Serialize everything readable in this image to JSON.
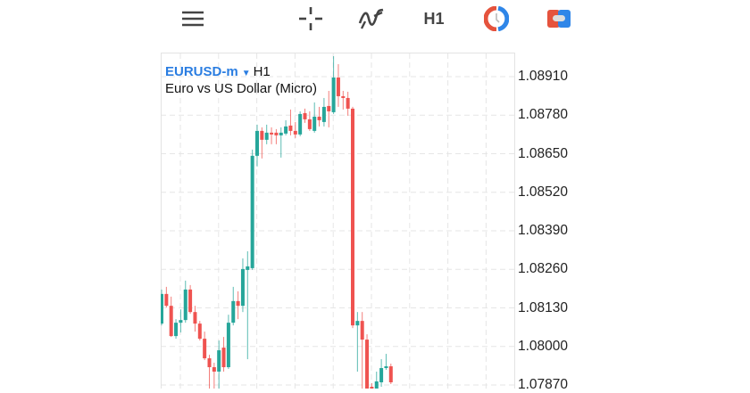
{
  "toolbar": {
    "menu_icon": "hamburger-icon",
    "crosshair_icon": "crosshair-icon",
    "indicators_icon": "indicator-icon",
    "timeframe": "H1",
    "objects_icon": "clock-circle-icon",
    "trade_icon": "trade-toggle-icon"
  },
  "chart_data": {
    "type": "candlestick",
    "symbol": "EURUSD-m",
    "timeframe": "H1",
    "description": "Euro vs US Dollar (Micro)",
    "y_ticks": [
      "1.08910",
      "1.08780",
      "1.08650",
      "1.08520",
      "1.08390",
      "1.08260",
      "1.08130",
      "1.08000",
      "1.07870"
    ],
    "ylim": [
      1.0787,
      1.0891
    ],
    "grid": true,
    "colors": {
      "up": "#26a69a",
      "down": "#ef5350"
    },
    "ohlc": [
      [
        1.08077,
        1.08192,
        1.08071,
        1.08177
      ],
      [
        1.08177,
        1.08201,
        1.08131,
        1.08137
      ],
      [
        1.08137,
        1.08168,
        1.08032,
        1.08035
      ],
      [
        1.08035,
        1.08092,
        1.08026,
        1.0808
      ],
      [
        1.0808,
        1.08125,
        1.08047,
        1.08089
      ],
      [
        1.08089,
        1.08222,
        1.0808,
        1.08192
      ],
      [
        1.08192,
        1.08207,
        1.0811,
        1.08116
      ],
      [
        1.08116,
        1.08137,
        1.0805,
        1.08077
      ],
      [
        1.08077,
        1.08086,
        1.0802,
        1.08026
      ],
      [
        1.08026,
        1.0805,
        1.07954,
        1.0796
      ],
      [
        1.0796,
        1.07972,
        1.07858,
        1.0793
      ],
      [
        1.0793,
        1.07945,
        1.07858,
        1.07915
      ],
      [
        1.07915,
        1.0802,
        1.07858,
        1.07987
      ],
      [
        1.07996,
        1.08032,
        1.07915,
        1.0793
      ],
      [
        1.0793,
        1.08107,
        1.07924,
        1.0808
      ],
      [
        1.0808,
        1.08201,
        1.08071,
        1.08153
      ],
      [
        1.08153,
        1.08186,
        1.08092,
        1.08137
      ],
      [
        1.08137,
        1.08297,
        1.08116,
        1.08261
      ],
      [
        1.08258,
        1.08321,
        1.07957,
        1.0827
      ],
      [
        1.08264,
        1.08664,
        1.08258,
        1.08643
      ],
      [
        1.08643,
        1.08748,
        1.08607,
        1.08727
      ],
      [
        1.08727,
        1.08739,
        1.08634,
        1.08697
      ],
      [
        1.08697,
        1.08748,
        1.08682,
        1.08721
      ],
      [
        1.08721,
        1.08739,
        1.08682,
        1.08715
      ],
      [
        1.08721,
        1.08733,
        1.08682,
        1.08712
      ],
      [
        1.08712,
        1.08739,
        1.08637,
        1.08721
      ],
      [
        1.08718,
        1.08763,
        1.08712,
        1.08742
      ],
      [
        1.08745,
        1.08799,
        1.08712,
        1.08727
      ],
      [
        1.08727,
        1.08757,
        1.08703,
        1.08715
      ],
      [
        1.08715,
        1.08793,
        1.08709,
        1.08784
      ],
      [
        1.08787,
        1.08802,
        1.08754,
        1.08766
      ],
      [
        1.08766,
        1.08793,
        1.08727,
        1.08733
      ],
      [
        1.08727,
        1.08823,
        1.08721,
        1.08775
      ],
      [
        1.08775,
        1.08808,
        1.08742,
        1.08763
      ],
      [
        1.08757,
        1.08838,
        1.08742,
        1.08808
      ],
      [
        1.08811,
        1.08862,
        1.08739,
        1.08793
      ],
      [
        1.0879,
        1.08979,
        1.08784,
        1.08907
      ],
      [
        1.08907,
        1.08952,
        1.08808,
        1.08844
      ],
      [
        1.08844,
        1.08862,
        1.08799,
        1.08838
      ],
      [
        1.08838,
        1.08859,
        1.08778,
        1.08802
      ],
      [
        1.08802,
        1.08808,
        1.08062,
        1.08071
      ],
      [
        1.08071,
        1.08116,
        1.07915,
        1.08086
      ],
      [
        1.08086,
        1.08116,
        1.07831,
        1.08023
      ],
      [
        1.08023,
        1.08041,
        1.07786,
        1.07846
      ],
      [
        1.07864,
        1.07876,
        1.07786,
        1.07852
      ],
      [
        1.07846,
        1.07915,
        1.07786,
        1.07882
      ],
      [
        1.07879,
        1.07957,
        1.07864,
        1.07927
      ],
      [
        1.07927,
        1.07975,
        1.07921,
        1.07933
      ],
      [
        1.07933,
        1.07942,
        1.07873,
        1.07879
      ]
    ]
  }
}
